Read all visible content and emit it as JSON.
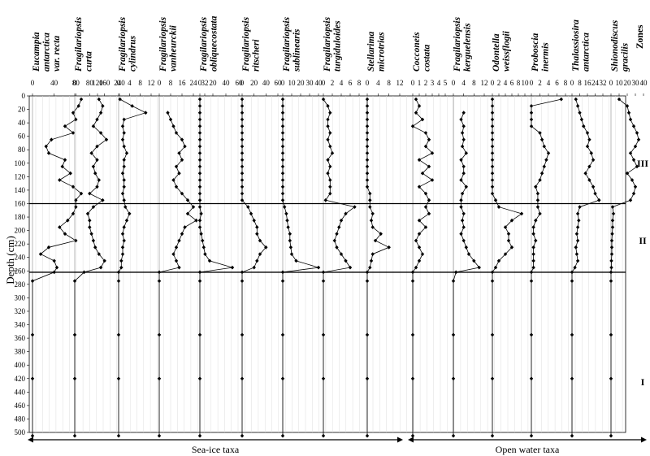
{
  "chart_data": {
    "type": "line",
    "ylabel": "Depth (cm)",
    "ylim": [
      0,
      500
    ],
    "yticks": [
      0,
      20,
      40,
      60,
      80,
      100,
      120,
      140,
      160,
      180,
      200,
      220,
      240,
      260,
      280,
      300,
      320,
      340,
      360,
      380,
      400,
      420,
      440,
      460,
      480,
      500
    ],
    "depths": [
      5,
      15,
      25,
      35,
      45,
      55,
      65,
      75,
      85,
      95,
      105,
      115,
      125,
      135,
      145,
      155,
      165,
      175,
      185,
      195,
      205,
      215,
      225,
      235,
      245,
      255,
      262,
      275,
      355,
      420,
      505
    ],
    "zones_label": "Zones",
    "zone_boundaries": [
      160,
      262
    ],
    "zones": [
      {
        "label": "III",
        "depth": 100
      },
      {
        "label": "II",
        "depth": 215
      },
      {
        "label": "I",
        "depth": 425
      }
    ],
    "groups": [
      {
        "label": "Sea-ice taxa",
        "from_panel": 0,
        "to_panel": 8
      },
      {
        "label": "Open water taxa",
        "from_panel": 9,
        "to_panel": 14
      }
    ],
    "panels": [
      {
        "title": [
          "Eucampia",
          "antarctica",
          "var. recta"
        ],
        "ticks": [
          "0",
          "40",
          "80",
          "120"
        ],
        "xlim": [
          0,
          120
        ],
        "values": [
          90,
          85,
          75,
          80,
          60,
          75,
          35,
          25,
          30,
          60,
          55,
          70,
          50,
          75,
          90,
          80,
          80,
          75,
          65,
          50,
          60,
          80,
          30,
          15,
          40,
          45,
          40,
          0,
          0,
          0,
          0
        ]
      },
      {
        "title": [
          "Fragilariopsis",
          "curta"
        ],
        "ticks": [
          "0",
          "80",
          "160",
          "240"
        ],
        "xlim": [
          0,
          240
        ],
        "values": [
          130,
          150,
          140,
          120,
          100,
          140,
          170,
          120,
          90,
          120,
          100,
          110,
          130,
          120,
          80,
          150,
          100,
          70,
          80,
          80,
          90,
          100,
          110,
          130,
          160,
          140,
          50,
          0,
          0,
          0,
          0
        ]
      },
      {
        "title": [
          "Fragilariopsis",
          "cylindrus"
        ],
        "ticks": [
          "0",
          "4",
          "8",
          "12"
        ],
        "xlim": [
          0,
          12
        ],
        "values": [
          0.5,
          5,
          10,
          2,
          1.5,
          2,
          1.5,
          2,
          3,
          2,
          2,
          1.5,
          2,
          2,
          1.5,
          2,
          2.5,
          4,
          3,
          2,
          1.5,
          2,
          1.5,
          1.5,
          1,
          1,
          0,
          0,
          0,
          0,
          0
        ]
      },
      {
        "title": [
          "Fragilariopsis",
          "vanheurckii"
        ],
        "ticks": [
          "0",
          "8",
          "16",
          "24",
          "32"
        ],
        "xlim": [
          0,
          32
        ],
        "values": [
          null,
          null,
          6,
          8,
          10,
          12,
          16,
          18,
          14,
          16,
          12,
          14,
          10,
          12,
          16,
          20,
          24,
          20,
          26,
          18,
          16,
          14,
          12,
          10,
          12,
          14,
          0,
          0,
          0,
          0,
          0
        ]
      },
      {
        "title": [
          "Fragilariopsis",
          "obliquecostata"
        ],
        "ticks": [
          "0",
          "20",
          "40",
          "60"
        ],
        "xlim": [
          0,
          60
        ],
        "values": [
          0,
          0,
          0,
          0,
          0,
          0,
          0,
          0,
          0,
          0,
          0,
          0,
          0,
          0,
          0,
          0,
          0,
          2,
          0,
          0,
          2,
          4,
          6,
          8,
          15,
          50,
          0,
          0,
          0,
          0,
          0
        ]
      },
      {
        "title": [
          "Fragilariopsis",
          "ritscheri"
        ],
        "ticks": [
          "0",
          "20",
          "40",
          "60"
        ],
        "xlim": [
          0,
          60
        ],
        "values": [
          0,
          0,
          0,
          0,
          0,
          0,
          0,
          0,
          0,
          0,
          0,
          0,
          0,
          0,
          0,
          0,
          10,
          15,
          20,
          25,
          25,
          30,
          40,
          30,
          25,
          20,
          0,
          0,
          0,
          0,
          0
        ]
      },
      {
        "title": [
          "Fragilariopsis",
          "sublinearis"
        ],
        "ticks": [
          "0",
          "10",
          "20",
          "30",
          "40"
        ],
        "xlim": [
          0,
          40
        ],
        "values": [
          0,
          0,
          0,
          0,
          0,
          0,
          0,
          0,
          0,
          0,
          0,
          0,
          0,
          0,
          0,
          0,
          2,
          4,
          5,
          6,
          8,
          8,
          9,
          10,
          15,
          40,
          0,
          0,
          0,
          0,
          0
        ]
      },
      {
        "title": [
          "Fragilariopsis",
          "turgiduloides"
        ],
        "ticks": [
          "0",
          "2",
          "4",
          "6",
          "8"
        ],
        "xlim": [
          0,
          8
        ],
        "values": [
          0,
          1,
          1.5,
          1,
          1,
          1.5,
          1,
          1.5,
          2,
          1,
          1.5,
          1,
          1.5,
          1.5,
          1.5,
          0.5,
          7,
          5,
          4,
          3.5,
          3,
          2.5,
          3,
          4,
          5,
          6,
          0,
          0,
          0,
          0,
          0
        ]
      },
      {
        "title": [
          "Stellarima",
          "microtrias"
        ],
        "ticks": [
          "0",
          "4",
          "8",
          "12"
        ],
        "xlim": [
          0,
          12
        ],
        "values": [
          0,
          0,
          0,
          0,
          0,
          0,
          0,
          0,
          0,
          0,
          0,
          0,
          0,
          0,
          1,
          1,
          1,
          2,
          1.5,
          2,
          5,
          3,
          8,
          2,
          1.5,
          1,
          0,
          0,
          0,
          0,
          0
        ]
      },
      {
        "title": [
          "Cocconeis",
          "costata"
        ],
        "ticks": [
          "0",
          "1",
          "2",
          "3",
          "4",
          "5"
        ],
        "xlim": [
          0,
          5
        ],
        "values": [
          0.5,
          1,
          0.5,
          1.5,
          0,
          2,
          2.5,
          2,
          3,
          1,
          2.5,
          1.5,
          3,
          1,
          2,
          2.5,
          2,
          2.5,
          1,
          2,
          1,
          0.5,
          1,
          1.5,
          1,
          0.5,
          0,
          0,
          0,
          0,
          0
        ]
      },
      {
        "title": [
          "Fragilariopsis",
          "kerguelensis"
        ],
        "ticks": [
          "0",
          "4",
          "8",
          "12"
        ],
        "xlim": [
          0,
          12
        ],
        "values": [
          null,
          null,
          4,
          3,
          4,
          3.5,
          4,
          3.5,
          5,
          3,
          4,
          4,
          3,
          5,
          3.5,
          3,
          3,
          4,
          3.5,
          4,
          3,
          4,
          5,
          6,
          8,
          10,
          1,
          0,
          0,
          0,
          0
        ]
      },
      {
        "title": [
          "Odontella",
          "weissflogii"
        ],
        "ticks": [
          "0",
          "2",
          "4",
          "6",
          "8",
          "10"
        ],
        "xlim": [
          0,
          10
        ],
        "values": [
          0,
          0,
          0,
          0,
          0,
          0,
          0,
          0,
          0,
          0,
          0,
          0,
          0,
          0,
          0,
          1,
          2,
          9,
          6,
          4,
          5,
          5,
          6,
          4,
          2,
          1,
          0,
          0,
          0,
          0,
          0
        ]
      },
      {
        "title": [
          "Proboscia",
          "inermis"
        ],
        "ticks": [
          "0",
          "2",
          "4",
          "6",
          "8"
        ],
        "xlim": [
          0,
          8
        ],
        "values": [
          7,
          0,
          0,
          0,
          0,
          2,
          2.5,
          3,
          4,
          3.5,
          3,
          2.5,
          2,
          1,
          1.5,
          1.5,
          1.5,
          2,
          1,
          0.5,
          0.5,
          1,
          0.5,
          0.5,
          0.5,
          0.5,
          0,
          0,
          0,
          0,
          0
        ]
      },
      {
        "title": [
          "Thalassiosira",
          "antarctica"
        ],
        "ticks": [
          "0",
          "8",
          "16",
          "24",
          "32"
        ],
        "xlim": [
          0,
          32
        ],
        "values": [
          4,
          6,
          8,
          10,
          12,
          16,
          18,
          16,
          20,
          22,
          18,
          14,
          18,
          22,
          24,
          28,
          8,
          6,
          7,
          6,
          5,
          6,
          4,
          5,
          6,
          3,
          0,
          0,
          0,
          0,
          0
        ]
      },
      {
        "title": [
          "Shionodiscus",
          "gracilis"
        ],
        "ticks": [
          "0",
          "10",
          "20",
          "30",
          "40"
        ],
        "xlim": [
          0,
          40
        ],
        "values": [
          10,
          20,
          22,
          24,
          28,
          32,
          34,
          30,
          24,
          28,
          32,
          20,
          26,
          30,
          28,
          24,
          2,
          3,
          2,
          2,
          1.5,
          1,
          1,
          1,
          0.5,
          0.5,
          0,
          0,
          0,
          0,
          0
        ]
      }
    ]
  }
}
